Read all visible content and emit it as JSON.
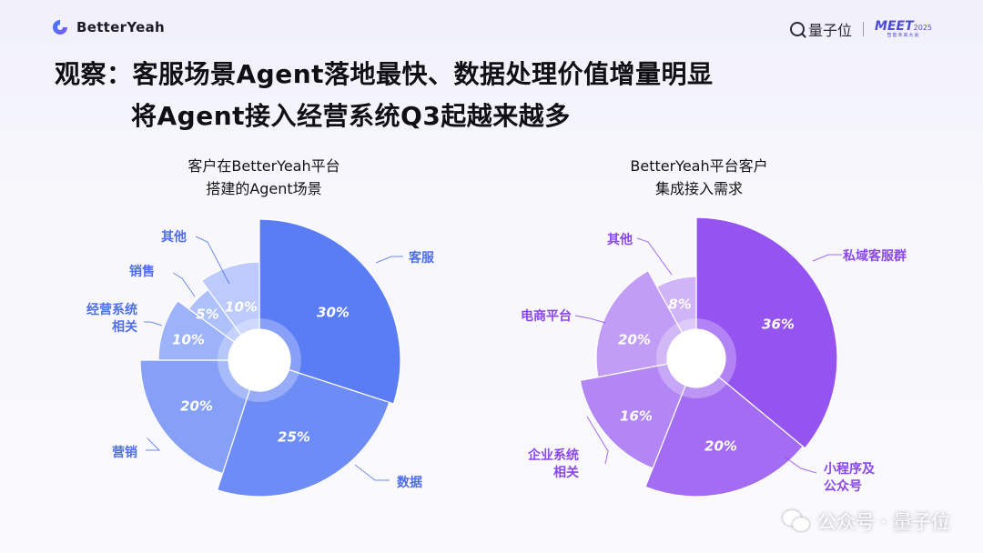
{
  "header": {
    "brand": "BetterYeah",
    "partner": "量子位",
    "event": "MEET",
    "event_year": "2025",
    "event_sub": "智能未来大会"
  },
  "title": {
    "line1": "观察：客服场景Agent落地最快、数据处理价值增量明显",
    "line2": "将Agent接入经营系统Q3起越来越多"
  },
  "watermark": {
    "text": "公众号 · 量子位"
  },
  "colors": {
    "left_base": "#5a7cf5",
    "right_base": "#9554f0",
    "left_label": "#4f6fe8",
    "right_label": "#8a47ec"
  },
  "chart_data": [
    {
      "type": "pie",
      "variant": "variable-radius-donut",
      "title": [
        "客户在BetterYeah平台",
        "搭建的Agent场景"
      ],
      "slices": [
        {
          "label": "客服",
          "value": 30,
          "value_label": "30%",
          "color": "#5a7cf5"
        },
        {
          "label": "数据",
          "value": 25,
          "value_label": "25%",
          "color": "#6e8cf6"
        },
        {
          "label": "营销",
          "value": 20,
          "value_label": "20%",
          "color": "#86a0f7"
        },
        {
          "label": "经营系统\n相关",
          "value": 10,
          "value_label": "10%",
          "color": "#9cb2f9"
        },
        {
          "label": "销售",
          "value": 5,
          "value_label": "5%",
          "color": "#afc1fa"
        },
        {
          "label": "其他",
          "value": 10,
          "value_label": "10%",
          "color": "#bccbfb"
        }
      ]
    },
    {
      "type": "pie",
      "variant": "variable-radius-donut",
      "title": [
        "BetterYeah平台客户",
        "集成接入需求"
      ],
      "slices": [
        {
          "label": "私域客服群",
          "value": 36,
          "value_label": "36%",
          "color": "#9554f0"
        },
        {
          "label": "小程序及\n公众号",
          "value": 20,
          "value_label": "20%",
          "color": "#a36cf2"
        },
        {
          "label": "企业系统\n相关",
          "value": 16,
          "value_label": "16%",
          "color": "#b286f4"
        },
        {
          "label": "电商平台",
          "value": 20,
          "value_label": "20%",
          "color": "#c29df6"
        },
        {
          "label": "其他",
          "value": 8,
          "value_label": "8%",
          "color": "#d0b4f8"
        }
      ]
    }
  ]
}
